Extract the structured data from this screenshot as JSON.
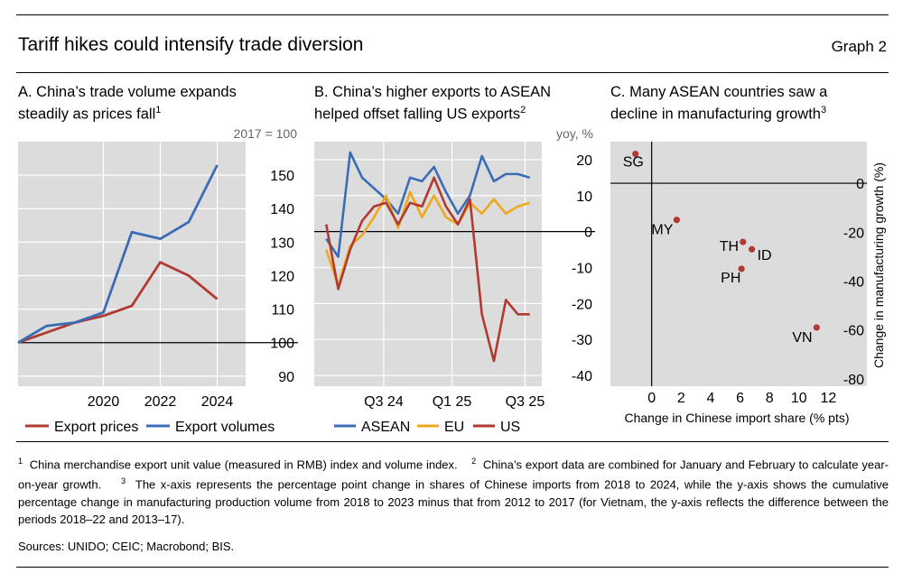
{
  "header": {
    "title": "Tariff hikes could intensify trade diversion",
    "graph_label": "Graph 2"
  },
  "colors": {
    "red": "#b03a32",
    "blue": "#3a6db5",
    "yellow": "#f0a81e",
    "panel_bg": "#dcdcdc",
    "grid": "#ffffff",
    "dot": "#b03a32"
  },
  "panels": [
    {
      "title_line1": "A. China’s trade volume expands",
      "title_line2": "steadily as prices fall",
      "note": "1"
    },
    {
      "title_line1": "B. China’s higher exports to ASEAN",
      "title_line2": "helped offset falling US exports",
      "note": "2"
    },
    {
      "title_line1": "C. Many ASEAN countries saw a",
      "title_line2": "decline in manufacturing growth",
      "note": "3"
    }
  ],
  "chart_data": [
    {
      "type": "line",
      "unit_label": "2017 = 100",
      "x": [
        2017,
        2018,
        2019,
        2020,
        2021,
        2022,
        2023,
        2024
      ],
      "xlim": [
        2017,
        2025
      ],
      "xticks": [
        "2020",
        "2022",
        "2024"
      ],
      "xtick_values": [
        2020,
        2022,
        2024
      ],
      "ylim": [
        87,
        160
      ],
      "yticks": [
        90,
        100,
        110,
        120,
        130,
        140,
        150
      ],
      "reference_line": 100,
      "series": [
        {
          "name": "Export prices",
          "color": "#b03a32",
          "values": [
            100,
            103,
            106,
            108,
            111,
            124,
            120,
            113
          ]
        },
        {
          "name": "Export volumes",
          "color": "#3a6db5",
          "values": [
            100,
            105,
            106,
            109,
            133,
            131,
            136,
            153
          ]
        }
      ],
      "legend": [
        "Export prices",
        "Export volumes"
      ]
    },
    {
      "type": "line",
      "unit_label": "yoy, %",
      "x": [
        0,
        1,
        2,
        3,
        4,
        5,
        6,
        7,
        8,
        9,
        10,
        11,
        12,
        13,
        14,
        15,
        16,
        17
      ],
      "xlim": [
        -1,
        18
      ],
      "xticks": [
        "Q3 24",
        "Q1 25",
        "Q3 25"
      ],
      "xtick_values": [
        4.8,
        10.5,
        16.6
      ],
      "ylim": [
        -43,
        25
      ],
      "yticks": [
        20,
        10,
        0,
        -10,
        -20,
        -30,
        -40
      ],
      "reference_line": 0,
      "series": [
        {
          "name": "ASEAN",
          "color": "#3a6db5",
          "values": [
            -2,
            -7,
            22,
            15,
            12,
            9,
            5,
            15,
            14,
            18,
            11,
            5,
            10,
            21,
            14,
            16,
            16,
            15
          ]
        },
        {
          "name": "EU",
          "color": "#f0a81e",
          "values": [
            -5,
            -15,
            -4,
            -1,
            4,
            10,
            1,
            11,
            4,
            10,
            4,
            2,
            8,
            5,
            9,
            5,
            7,
            8
          ]
        },
        {
          "name": "US",
          "color": "#b03a32",
          "values": [
            2,
            -16,
            -5,
            3,
            7,
            8,
            2,
            8,
            7,
            15,
            7,
            2,
            9,
            -23,
            -36,
            -19,
            -23,
            -23
          ]
        }
      ],
      "legend": [
        "ASEAN",
        "EU",
        "US"
      ]
    },
    {
      "type": "scatter",
      "xlabel": "Change in Chinese import share (% pts)",
      "ylabel": "Change in manufacturing growth (%)",
      "xlim": [
        -2.8,
        14
      ],
      "ylim": [
        -83,
        17
      ],
      "xticks": [
        0,
        2,
        4,
        6,
        8,
        10,
        12
      ],
      "yticks": [
        0,
        -20,
        -40,
        -60,
        -80
      ],
      "points": [
        {
          "label": "SG",
          "x": -1.1,
          "y": 12
        },
        {
          "label": "MY",
          "x": 1.7,
          "y": -15
        },
        {
          "label": "TH",
          "x": 6.2,
          "y": -24
        },
        {
          "label": "ID",
          "x": 6.8,
          "y": -27
        },
        {
          "label": "PH",
          "x": 6.1,
          "y": -35
        },
        {
          "label": "VN",
          "x": 11.2,
          "y": -59
        }
      ]
    }
  ],
  "footnotes": {
    "n1": "1",
    "t1": "China merchandise export unit value (measured in RMB) index and volume index.",
    "n2": "2",
    "t2": "China’s export data are combined for January and February to calculate year-on-year growth.",
    "n3": "3",
    "t3": "The x-axis represents the percentage point change in shares of Chinese imports from 2018 to 2024, while the y-axis shows the cumulative percentage change in manufacturing production volume from 2018 to 2023 minus that from 2012 to 2017 (for Vietnam, the y-axis reflects the difference between the periods 2018–22 and 2013–17)."
  },
  "sources": "Sources: UNIDO; CEIC; Macrobond; BIS."
}
